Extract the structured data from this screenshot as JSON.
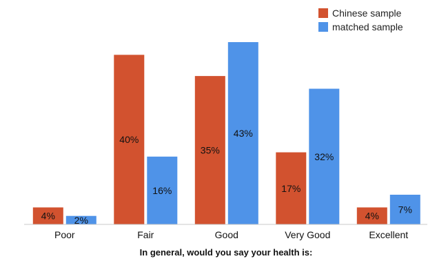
{
  "chart_data": {
    "type": "bar",
    "categories": [
      "Poor",
      "Fair",
      "Good",
      "Very Good",
      "Excellent"
    ],
    "series": [
      {
        "name": "Chinese sample",
        "color": "#d2522f",
        "values": [
          4,
          40,
          35,
          17,
          4
        ],
        "labels": [
          "4%",
          "40%",
          "35%",
          "17%",
          "4%"
        ]
      },
      {
        "name": "matched sample",
        "color": "#4f93e8",
        "values": [
          2,
          16,
          43,
          32,
          7
        ],
        "labels": [
          "2%",
          "16%",
          "43%",
          "32%",
          "7%"
        ]
      }
    ],
    "xlabel": "In general, would you say your health is:",
    "ylabel": "",
    "ylim": [
      0,
      43
    ],
    "grid": false,
    "legend_position": "top-right"
  }
}
